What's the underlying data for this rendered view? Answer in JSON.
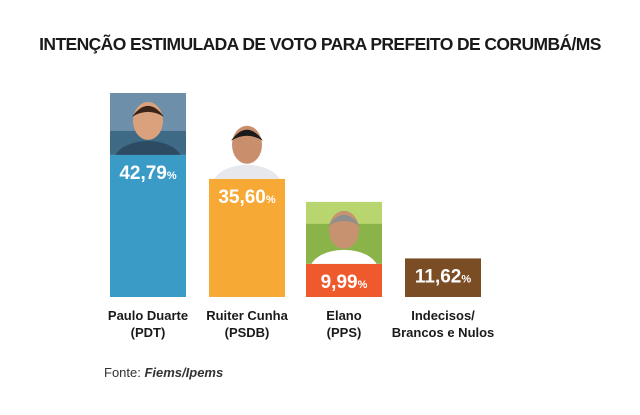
{
  "title": "INTENÇÃO ESTIMULADA DE VOTO PARA PREFEITO DE CORUMBÁ/MS",
  "source": {
    "prefix": "Fonte: ",
    "name": "Fiems/Ipems"
  },
  "chart_data": {
    "type": "bar",
    "title": "INTENÇÃO ESTIMULADA DE VOTO PARA PREFEITO DE CORUMBÁ/MS",
    "categories": [
      "Paulo Duarte",
      "Ruiter Cunha",
      "Elano",
      "Indecisos/ Brancos e Nulos"
    ],
    "sublabels": [
      "(PDT)",
      "(PSDB)",
      "(PPS)",
      "Brancos e Nulos"
    ],
    "category_lines": [
      [
        "Paulo Duarte",
        "(PDT)"
      ],
      [
        "Ruiter Cunha",
        "(PSDB)"
      ],
      [
        "Elano",
        "(PPS)"
      ],
      [
        "Indecisos/",
        "Brancos e Nulos"
      ]
    ],
    "values": [
      42.79,
      35.6,
      9.99,
      11.62
    ],
    "value_labels": [
      "42,79",
      "35,60",
      "9,99",
      "11,62"
    ],
    "unit": "%",
    "colors": [
      "#3a9bc7",
      "#f7a935",
      "#ee5a2b",
      "#7b4d24"
    ],
    "has_photo": [
      true,
      true,
      true,
      false
    ],
    "grid": false,
    "legend": "none"
  }
}
